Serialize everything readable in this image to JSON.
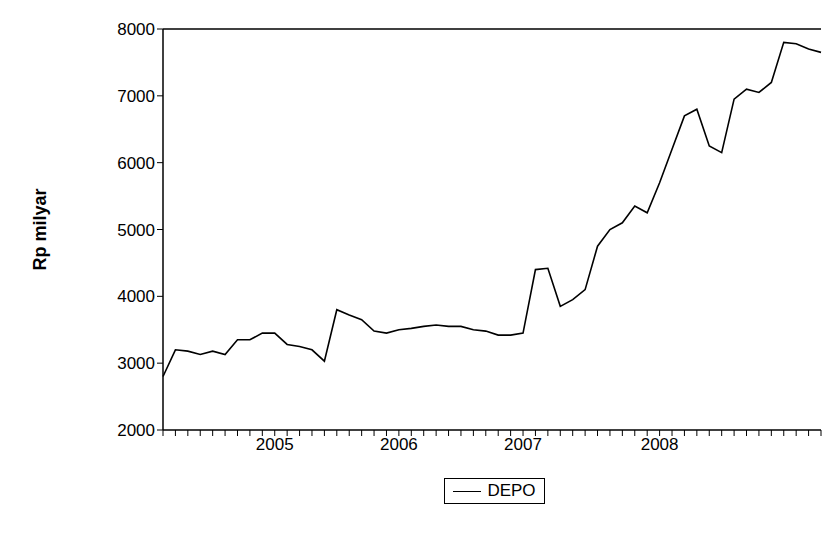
{
  "chart_data": {
    "type": "line",
    "y_label": "Rp milyar",
    "legend": "bottom",
    "grid": false,
    "categories": [
      null,
      null,
      null,
      null,
      null,
      null,
      null,
      null,
      null,
      "2005",
      null,
      null,
      null,
      null,
      null,
      null,
      null,
      null,
      null,
      "2006",
      null,
      null,
      null,
      null,
      null,
      null,
      null,
      null,
      null,
      "2007",
      null,
      null,
      null,
      null,
      null,
      null,
      null,
      null,
      null,
      null,
      "2008",
      null,
      null,
      null,
      null,
      null,
      null,
      null,
      null,
      null,
      null,
      null,
      null,
      null
    ],
    "series": [
      {
        "name": "DEPO",
        "color": "#000000",
        "values": [
          2800,
          3200,
          3180,
          3130,
          3180,
          3130,
          3350,
          3350,
          3450,
          3450,
          3280,
          3250,
          3200,
          3030,
          3800,
          3720,
          3650,
          3480,
          3450,
          3500,
          3520,
          3550,
          3570,
          3550,
          3550,
          3500,
          3480,
          3420,
          3420,
          3450,
          4400,
          4420,
          3850,
          3950,
          4100,
          4750,
          5000,
          5100,
          5350,
          5250,
          5700,
          6200,
          6700,
          6800,
          6250,
          6150,
          6950,
          7100,
          7050,
          7200,
          7800,
          7780,
          7700,
          7650
        ]
      }
    ],
    "ylim": [
      2000,
      8000
    ],
    "yticks": [
      2000,
      3000,
      4000,
      5000,
      6000,
      7000,
      8000
    ]
  }
}
